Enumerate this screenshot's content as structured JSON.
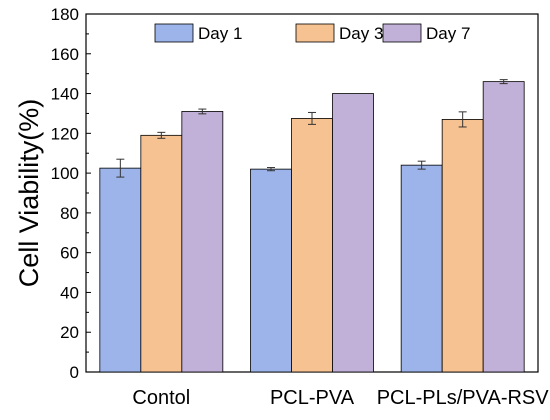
{
  "chart_data": {
    "type": "bar",
    "title": "",
    "xlabel": "",
    "ylabel": "Cell Viability(%)",
    "ylim": [
      0,
      180
    ],
    "yticks": [
      0,
      20,
      40,
      60,
      80,
      100,
      120,
      140,
      160,
      180
    ],
    "ytick_labels": [
      "0",
      "20",
      "40",
      "60",
      "80",
      "100",
      "120",
      "140",
      "160",
      "180"
    ],
    "categories": [
      "Contol",
      "PCL-PVA",
      "PCL-PLs/PVA-RSV"
    ],
    "series": [
      {
        "name": "Day 1",
        "color": "#9db4ea",
        "values": [
          102.5,
          102.0,
          104.0
        ],
        "errors": [
          4.5,
          0.8,
          2.0
        ]
      },
      {
        "name": "Day 3",
        "color": "#f7c291",
        "values": [
          119.0,
          127.5,
          127.0
        ],
        "errors": [
          1.5,
          3.0,
          3.8
        ]
      },
      {
        "name": "Day 7",
        "color": "#c1b0d7",
        "values": [
          131.0,
          140.0,
          146.0
        ],
        "errors": [
          1.2,
          0.0,
          1.0
        ]
      }
    ],
    "legend_position": "top",
    "grid": false
  }
}
